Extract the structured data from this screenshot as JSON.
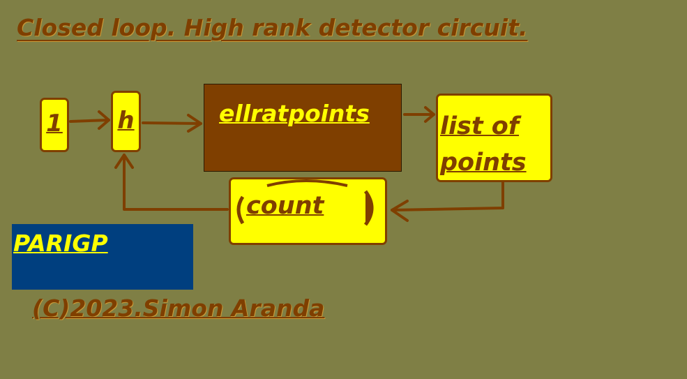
{
  "title": "Closed loop. High rank detector circuit.",
  "diagram": {
    "box_1": "1",
    "box_h": "h",
    "box_ellratpoints": "ellratpoints",
    "box_list": [
      "list of",
      "points"
    ],
    "box_count": "count"
  },
  "parigp_label": "PARIGP",
  "copyright": "(C)2023.Simon Aranda",
  "colors": {
    "background": "#7f7f45",
    "box_fill": "#ffff00",
    "wire": "#7f3f00",
    "parigp_fill": "#003f7f"
  }
}
